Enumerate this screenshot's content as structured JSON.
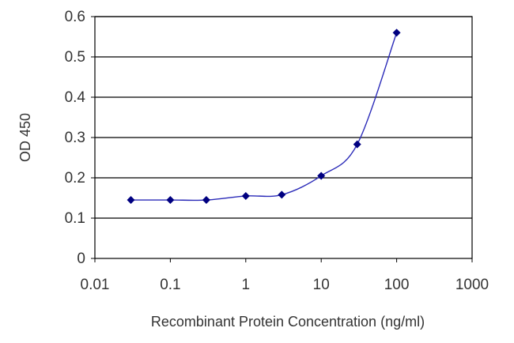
{
  "chart_data": {
    "type": "line",
    "title": "",
    "xlabel": "Recombinant Protein Concentration (ng/ml)",
    "ylabel": "OD 450",
    "x_scale": "log",
    "xlim": [
      0.01,
      1000
    ],
    "ylim": [
      0,
      0.6
    ],
    "x_ticks": [
      "0.01",
      "0.1",
      "1",
      "10",
      "100",
      "1000"
    ],
    "y_ticks": [
      "0",
      "0.1",
      "0.2",
      "0.3",
      "0.4",
      "0.5",
      "0.6"
    ],
    "grid": "horizontal",
    "legend": "none",
    "series": [
      {
        "x": [
          0.03,
          0.1,
          0.3,
          1,
          3,
          10,
          30,
          100
        ],
        "y": [
          0.145,
          0.145,
          0.145,
          0.155,
          0.158,
          0.205,
          0.283,
          0.56
        ],
        "color": "#000080"
      }
    ]
  }
}
